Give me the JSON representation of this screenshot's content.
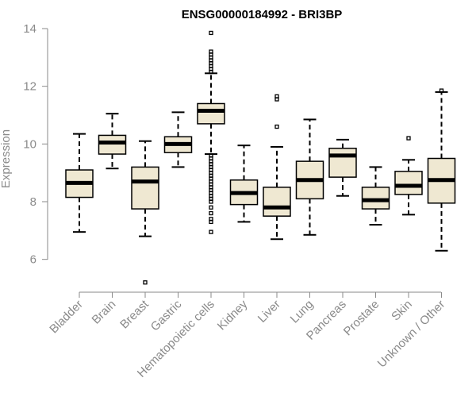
{
  "chart_data": {
    "type": "boxplot",
    "title": "ENSG00000184992 - BRI3BP",
    "xlabel": "",
    "ylabel": "Expression",
    "ylim": [
      5.0,
      14.0
    ],
    "yticks": [
      6,
      8,
      10,
      12,
      14
    ],
    "ytick_labels": [
      "6",
      "8",
      "10",
      "12",
      "14"
    ],
    "grid": false,
    "legend": "none",
    "box_fill": "#efe8d2",
    "box_stroke": "#000000",
    "categories": [
      "Bladder",
      "Brain",
      "Breast",
      "Gastric",
      "Hematopoietic cells",
      "Kidney",
      "Liver",
      "Lung",
      "Pancreas",
      "Prostate",
      "Skin",
      "Unknown / Other"
    ],
    "boxes": [
      {
        "category": "Bladder",
        "whisker_low": 6.95,
        "q1": 8.15,
        "median": 8.65,
        "q3": 9.1,
        "whisker_high": 10.35,
        "outliers": []
      },
      {
        "category": "Brain",
        "whisker_low": 9.15,
        "q1": 9.65,
        "median": 10.05,
        "q3": 10.3,
        "whisker_high": 11.05,
        "outliers": []
      },
      {
        "category": "Breast",
        "whisker_low": 6.8,
        "q1": 7.75,
        "median": 8.7,
        "q3": 9.2,
        "whisker_high": 10.1,
        "outliers": [
          5.2
        ]
      },
      {
        "category": "Gastric",
        "whisker_low": 9.2,
        "q1": 9.7,
        "median": 10.0,
        "q3": 10.25,
        "whisker_high": 11.1,
        "outliers": []
      },
      {
        "category": "Hematopoietic cells",
        "whisker_low": 9.65,
        "q1": 10.7,
        "median": 11.15,
        "q3": 11.4,
        "whisker_high": 12.45,
        "outliers": [
          13.85,
          13.2,
          13.1,
          13.0,
          12.9,
          12.8,
          12.7,
          12.6,
          12.5,
          9.6,
          9.5,
          9.4,
          9.3,
          9.2,
          9.1,
          9.0,
          8.9,
          8.8,
          8.7,
          8.6,
          8.5,
          8.4,
          8.3,
          8.2,
          8.1,
          8.0,
          7.8,
          7.6,
          7.4,
          7.3,
          6.95
        ]
      },
      {
        "category": "Kidney",
        "whisker_low": 7.3,
        "q1": 7.9,
        "median": 8.3,
        "q3": 8.75,
        "whisker_high": 9.95,
        "outliers": []
      },
      {
        "category": "Liver",
        "whisker_low": 6.7,
        "q1": 7.5,
        "median": 7.8,
        "q3": 8.5,
        "whisker_high": 9.9,
        "outliers": [
          10.6,
          11.55,
          11.65
        ]
      },
      {
        "category": "Lung",
        "whisker_low": 6.85,
        "q1": 8.1,
        "median": 8.75,
        "q3": 9.4,
        "whisker_high": 10.85,
        "outliers": []
      },
      {
        "category": "Pancreas",
        "whisker_low": 8.2,
        "q1": 8.85,
        "median": 9.6,
        "q3": 9.85,
        "whisker_high": 10.15,
        "outliers": []
      },
      {
        "category": "Prostate",
        "whisker_low": 7.2,
        "q1": 7.75,
        "median": 8.05,
        "q3": 8.5,
        "whisker_high": 9.2,
        "outliers": []
      },
      {
        "category": "Skin",
        "whisker_low": 7.55,
        "q1": 8.25,
        "median": 8.55,
        "q3": 9.05,
        "whisker_high": 9.45,
        "outliers": [
          10.2
        ]
      },
      {
        "category": "Unknown / Other",
        "whisker_low": 6.3,
        "q1": 7.95,
        "median": 8.75,
        "q3": 9.5,
        "whisker_high": 11.8,
        "outliers": [
          11.85
        ]
      }
    ]
  }
}
